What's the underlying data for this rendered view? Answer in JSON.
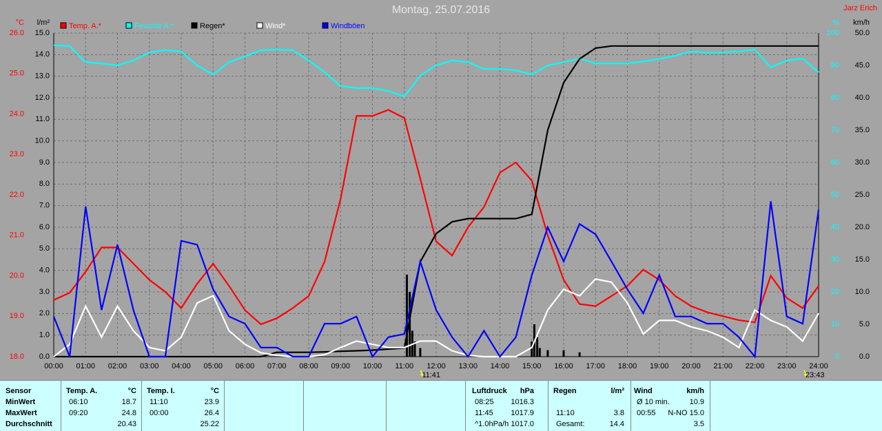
{
  "chart_data": {
    "type": "line",
    "title": "Montag, 25.07.2016",
    "author": "Jarz Erich",
    "x": [
      0,
      0.5,
      1,
      1.5,
      2,
      2.5,
      3,
      3.5,
      4,
      4.5,
      5,
      5.5,
      6,
      6.5,
      7,
      7.5,
      8,
      8.5,
      9,
      9.5,
      10,
      10.5,
      11,
      11.5,
      12,
      12.5,
      13,
      13.5,
      14,
      14.5,
      15,
      15.5,
      16,
      16.5,
      17,
      17.5,
      18,
      18.5,
      19,
      19.5,
      20,
      20.5,
      21,
      21.5,
      22,
      22.5,
      23,
      23.5,
      24
    ],
    "xlim": [
      0,
      24
    ],
    "xticks": [
      {
        "value": 0,
        "label": "00:00"
      },
      {
        "value": 1,
        "label": "01:00"
      },
      {
        "value": 2,
        "label": "02:00"
      },
      {
        "value": 3,
        "label": "03:00"
      },
      {
        "value": 4,
        "label": "04:00"
      },
      {
        "value": 5,
        "label": "05:00"
      },
      {
        "value": 6,
        "label": "06:00"
      },
      {
        "value": 7,
        "label": "07:00"
      },
      {
        "value": 8,
        "label": "08:00"
      },
      {
        "value": 9,
        "label": "09:00"
      },
      {
        "value": 10,
        "label": "10:00"
      },
      {
        "value": 11,
        "label": "11:00"
      },
      {
        "value": 12,
        "label": "12:00"
      },
      {
        "value": 13,
        "label": "13:00"
      },
      {
        "value": 14,
        "label": "14:00"
      },
      {
        "value": 15,
        "label": "15:00"
      },
      {
        "value": 16,
        "label": "16:00"
      },
      {
        "value": 17,
        "label": "17:00"
      },
      {
        "value": 18,
        "label": "18:00"
      },
      {
        "value": 19,
        "label": "19:00"
      },
      {
        "value": 20,
        "label": "20:00"
      },
      {
        "value": 21,
        "label": "21:00"
      },
      {
        "value": 22,
        "label": "22:00"
      },
      {
        "value": 23,
        "label": "23:00"
      },
      {
        "value": 24,
        "label": "24:00"
      }
    ],
    "grid": true,
    "grid_axis": 1,
    "axes": [
      {
        "unit": "°C",
        "color": "#ff0000",
        "lim": [
          18,
          26
        ],
        "ticks": [
          {
            "value": 18,
            "label": "18.0"
          },
          {
            "value": 19,
            "label": "19.0"
          },
          {
            "value": 20,
            "label": "20.0"
          },
          {
            "value": 21,
            "label": "21.0"
          },
          {
            "value": 22,
            "label": "22.0"
          },
          {
            "value": 23,
            "label": "23.0"
          },
          {
            "value": 24,
            "label": "24.0"
          },
          {
            "value": 25,
            "label": "25.0"
          },
          {
            "value": 26,
            "label": "26.0"
          }
        ]
      },
      {
        "unit": "l/m²",
        "color": "#000000",
        "lim": [
          0,
          15
        ],
        "ticks": [
          {
            "value": 0,
            "label": "0.0"
          },
          {
            "value": 1,
            "label": "1.0"
          },
          {
            "value": 2,
            "label": "2.0"
          },
          {
            "value": 3,
            "label": "3.0"
          },
          {
            "value": 4,
            "label": "4.0"
          },
          {
            "value": 5,
            "label": "5.0"
          },
          {
            "value": 6,
            "label": "6.0"
          },
          {
            "value": 7,
            "label": "7.0"
          },
          {
            "value": 8,
            "label": "8.0"
          },
          {
            "value": 9,
            "label": "9.0"
          },
          {
            "value": 10,
            "label": "10.0"
          },
          {
            "value": 11,
            "label": "11.0"
          },
          {
            "value": 12,
            "label": "12.0"
          },
          {
            "value": 13,
            "label": "13.0"
          },
          {
            "value": 14,
            "label": "14.0"
          },
          {
            "value": 15,
            "label": "15.0"
          }
        ]
      },
      {
        "unit": "%",
        "color": "#00ffff",
        "lim": [
          0,
          100
        ],
        "ticks": [
          0,
          10,
          20,
          30,
          40,
          50,
          60,
          70,
          80,
          90,
          100
        ]
      },
      {
        "unit": "km/h",
        "color": "#000000",
        "lim": [
          0,
          50
        ],
        "ticks": [
          {
            "value": 0,
            "label": "0.0"
          },
          {
            "value": 5,
            "label": "5.0"
          },
          {
            "value": 10,
            "label": "10.0"
          },
          {
            "value": 15,
            "label": "15.0"
          },
          {
            "value": 20,
            "label": "20.0"
          },
          {
            "value": 25,
            "label": "25.0"
          },
          {
            "value": 30,
            "label": "30.0"
          },
          {
            "value": 35,
            "label": "35.0"
          },
          {
            "value": 40,
            "label": "40.0"
          },
          {
            "value": 45,
            "label": "45.0"
          },
          {
            "value": 50,
            "label": "50.0"
          }
        ]
      }
    ],
    "series": [
      {
        "name": "Temp. A.*",
        "color": "#ff0000",
        "axis": 0,
        "values": [
          19.4,
          19.58,
          20.1,
          20.7,
          20.7,
          20.3,
          19.9,
          19.6,
          19.2,
          19.8,
          20.3,
          19.75,
          19.15,
          18.8,
          18.95,
          19.2,
          19.5,
          20.35,
          21.9,
          23.95,
          23.95,
          24.1,
          23.9,
          22.4,
          20.85,
          20.5,
          21.2,
          21.7,
          22.55,
          22.8,
          22.35,
          21.0,
          19.9,
          19.3,
          19.25,
          19.5,
          19.75,
          20.15,
          19.9,
          19.5,
          19.25,
          19.1,
          19.0,
          18.9,
          18.85,
          20.0,
          19.45,
          19.2,
          19.75
        ]
      },
      {
        "name": "Feuchte A.*",
        "color": "#00ffff",
        "axis": 2,
        "values": [
          96.2,
          96,
          91,
          90.6,
          90,
          91.5,
          94,
          94.7,
          94.3,
          90,
          87.2,
          91,
          92.8,
          94.7,
          94.9,
          94.7,
          91.5,
          87.9,
          83.6,
          83,
          83,
          82.1,
          80.4,
          86.8,
          90,
          91.5,
          91,
          88.9,
          88.9,
          88.5,
          87.2,
          90,
          91,
          92.1,
          90.6,
          90.6,
          90.6,
          91.2,
          92,
          93,
          94.3,
          94,
          94,
          94.3,
          94.9,
          89.4,
          91.5,
          92.1,
          87.9
        ]
      },
      {
        "name": "Regen*",
        "color": "#000000",
        "axis": 1,
        "values": [
          0,
          0,
          0,
          0,
          0,
          0,
          0,
          0,
          0,
          0,
          0,
          0,
          0,
          0,
          0.2,
          0.2,
          0.2,
          0.22,
          0.25,
          0.27,
          0.3,
          0.35,
          0.4,
          4.4,
          5.7,
          6.25,
          6.4,
          6.4,
          6.4,
          6.4,
          6.6,
          10.5,
          12.7,
          13.8,
          14.3,
          14.4,
          14.4,
          14.4,
          14.4,
          14.4,
          14.4,
          14.4,
          14.4,
          14.4,
          14.4,
          14.4,
          14.4,
          14.4,
          14.4
        ]
      },
      {
        "name": "Wind*",
        "color": "#ffffff",
        "axis": 3,
        "values": [
          0,
          1.9,
          7.8,
          3,
          7.8,
          4,
          1.4,
          0.9,
          3,
          8.3,
          9.4,
          4,
          1.9,
          0.6,
          0.2,
          0,
          0,
          0.3,
          1.4,
          2.4,
          1.9,
          1.4,
          1.4,
          2.4,
          2.4,
          0.9,
          0.2,
          0,
          0,
          0,
          1.4,
          7.2,
          10.4,
          9.4,
          12,
          11.5,
          8.3,
          3.5,
          5.6,
          5.6,
          4.6,
          4,
          3,
          1.4,
          7.2,
          5.6,
          4.6,
          2.4,
          6.7
        ]
      },
      {
        "name": "Windböen",
        "color": "#0000ff",
        "axis": 3,
        "values": [
          6.2,
          0,
          23.2,
          7.2,
          17.3,
          7.2,
          0,
          0,
          17.9,
          17.3,
          10.4,
          6.2,
          5.1,
          1.4,
          1.4,
          0,
          0,
          5.1,
          5.1,
          6.2,
          0,
          3,
          3.5,
          14.7,
          7.2,
          3,
          0,
          4,
          0,
          3,
          12.6,
          20,
          14.7,
          20.5,
          18.9,
          14.7,
          10.4,
          6.7,
          12.6,
          6.2,
          6.2,
          5.1,
          5.1,
          3,
          0,
          24,
          6.2,
          5.1,
          22.7
        ]
      }
    ],
    "rain_bars": {
      "color": "#000000",
      "axis": 1,
      "x": [
        11.08,
        11.17,
        11.25,
        11.33,
        11.5,
        15.0,
        15.08,
        15.17,
        15.25,
        15.5,
        16.0,
        16.5
      ],
      "values": [
        3.8,
        3.0,
        1.2,
        0.7,
        0.4,
        0.7,
        1.5,
        0.9,
        0.4,
        0.3,
        0.3,
        0.2
      ]
    },
    "markers": [
      {
        "x": 11.683,
        "label": "11:41"
      },
      {
        "x": 23.717,
        "label": "23:43"
      }
    ]
  },
  "table": {
    "sensor": [
      "Sensor",
      "MinWert",
      "MaxWert",
      "Durchschnitt"
    ],
    "columns": [
      {
        "title": "Temp. A.",
        "unit": "°C",
        "rows": [
          {
            "time": "06:10",
            "value": "18.7"
          },
          {
            "time": "09:20",
            "value": "24.8"
          },
          {
            "value": "20.43"
          }
        ]
      },
      {
        "title": "Temp. I.",
        "unit": "°C",
        "rows": [
          {
            "time": "11:10",
            "value": "23.9"
          },
          {
            "time": "00:00",
            "value": "26.4"
          },
          {
            "value": "25.22"
          }
        ]
      },
      {
        "title": "Luftdruck",
        "unit": "hPa",
        "rows": [
          {
            "time": "08:25",
            "value": "1016.3"
          },
          {
            "time": "11:45",
            "value": "1017.9"
          },
          {
            "time": "^1.0hPa/h",
            "value": "1017.0"
          }
        ]
      },
      {
        "title": "Regen",
        "unit": "l/m²",
        "rows": [
          {},
          {
            "time": "11:10",
            "value": "3.8"
          },
          {
            "time": "Gesamt:",
            "value": "14.4"
          }
        ]
      },
      {
        "title": "Wind",
        "unit": "km/h",
        "rows": [
          {
            "time": "Ø 10 min.",
            "value": "10.9"
          },
          {
            "time": "00:55",
            "value": "N-NO 15.0"
          },
          {
            "value": "3.5"
          }
        ]
      }
    ]
  }
}
